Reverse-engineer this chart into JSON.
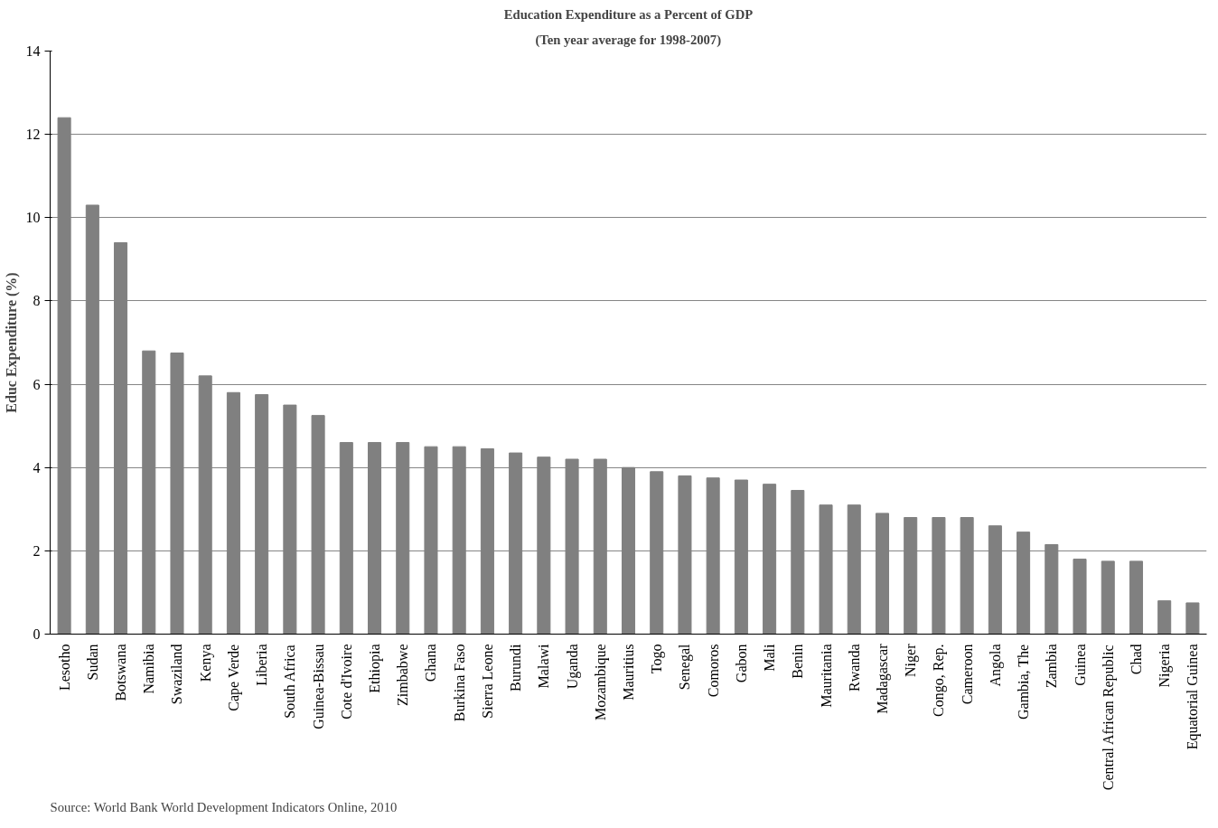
{
  "chart_data": {
    "type": "bar",
    "title": "Education Expenditure as a Percent of GDP",
    "subtitle": "(Ten year average for 1998-2007)",
    "ylabel": "Educ Expenditure (%)",
    "categories": [
      "Lesotho",
      "Sudan",
      "Botswana",
      "Namibia",
      "Swaziland",
      "Kenya",
      "Cape Verde",
      "Liberia",
      "South Africa",
      "Guinea-Bissau",
      "Cote d'Ivoire",
      "Ethiopia",
      "Zimbabwe",
      "Ghana",
      "Burkina Faso",
      "Sierra Leone",
      "Burundi",
      "Malawi",
      "Uganda",
      "Mozambique",
      "Mauritius",
      "Togo",
      "Senegal",
      "Comoros",
      "Gabon",
      "Mali",
      "Benin",
      "Mauritania",
      "Rwanda",
      "Madagascar",
      "Niger",
      "Congo, Rep.",
      "Cameroon",
      "Angola",
      "Gambia, The",
      "Zambia",
      "Guinea",
      "Central African Republic",
      "Chad",
      "Nigeria",
      "Equatorial Guinea"
    ],
    "values": [
      12.4,
      10.3,
      9.4,
      6.8,
      6.75,
      6.2,
      5.8,
      5.75,
      5.5,
      5.25,
      4.6,
      4.6,
      4.6,
      4.5,
      4.5,
      4.45,
      4.35,
      4.25,
      4.2,
      4.2,
      4.0,
      3.9,
      3.8,
      3.75,
      3.7,
      3.6,
      3.45,
      3.1,
      3.1,
      2.9,
      2.8,
      2.8,
      2.8,
      2.6,
      2.45,
      2.15,
      1.8,
      1.75,
      1.75,
      0.8,
      0.75
    ],
    "color": "#808080",
    "ylim": [
      0,
      14
    ],
    "yticks": [
      0,
      2,
      4,
      6,
      8,
      10,
      12,
      14
    ],
    "grid": "y",
    "annotations": [
      "Source: World Bank World Development Indicators Online, 2010"
    ]
  }
}
